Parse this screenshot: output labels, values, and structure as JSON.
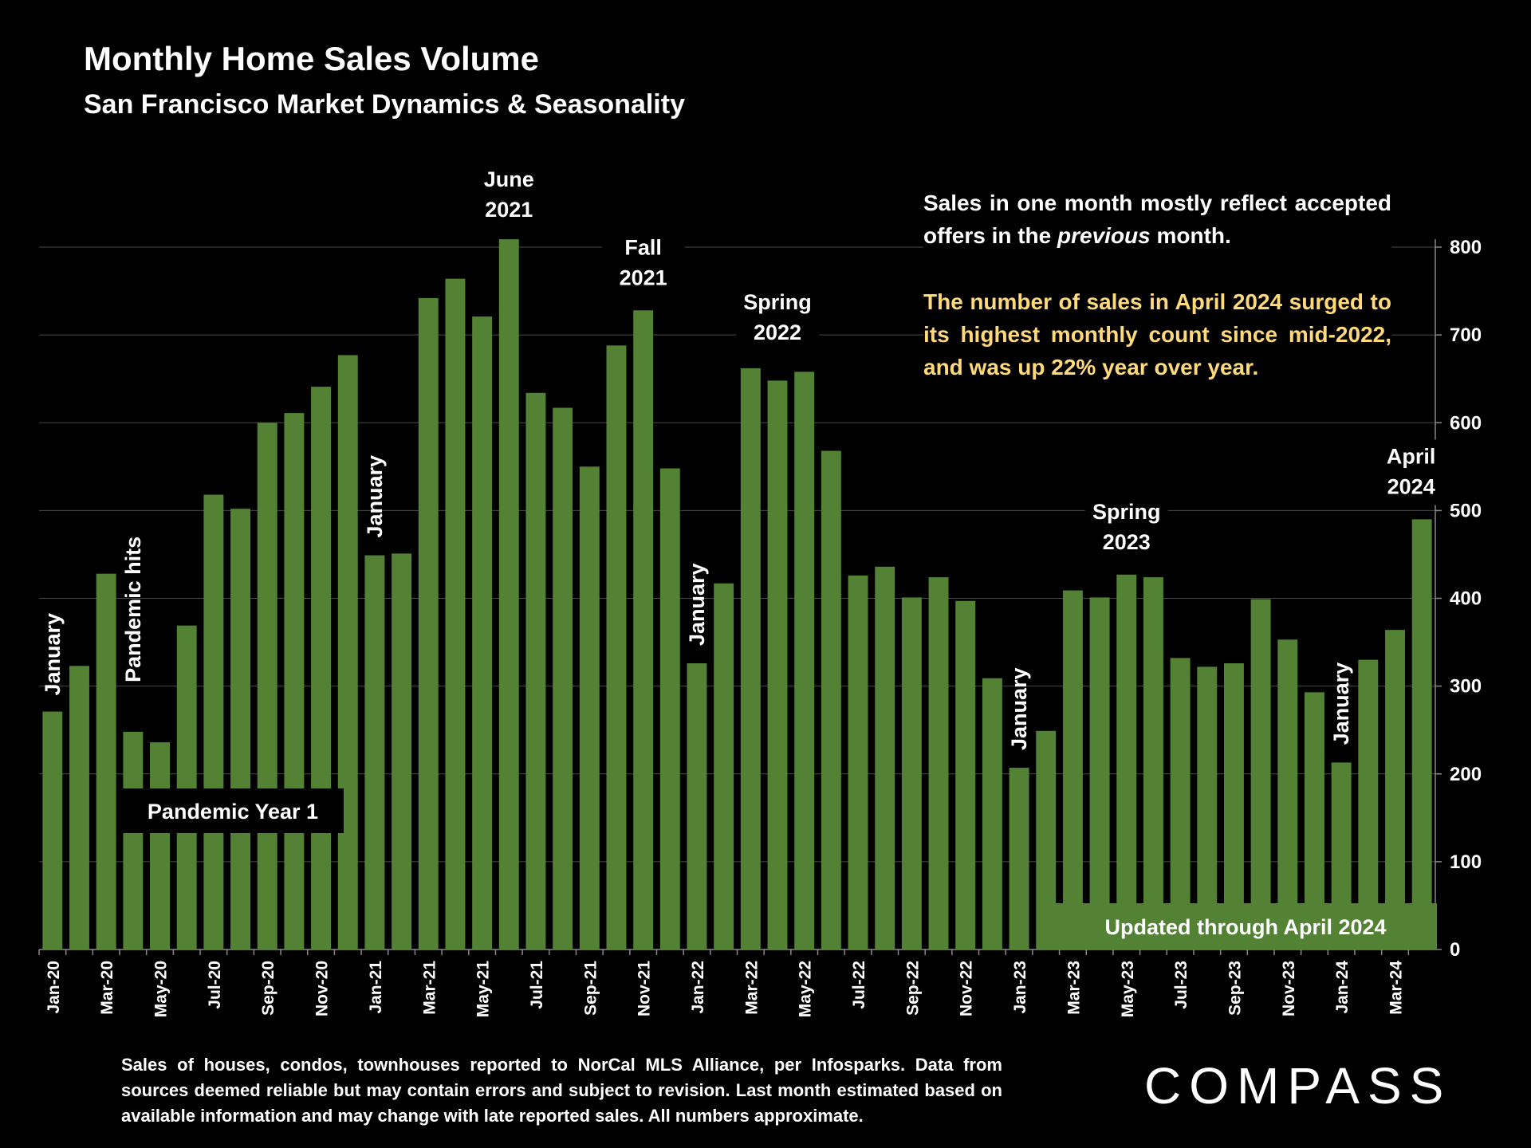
{
  "chart_data": {
    "type": "bar",
    "title": "Monthly Home Sales Volume",
    "subtitle": "San Francisco Market Dynamics & Seasonality",
    "categories": [
      "Jan-20",
      null,
      "Mar-20",
      null,
      "May-20",
      null,
      "Jul-20",
      null,
      "Sep-20",
      null,
      "Nov-20",
      null,
      "Jan-21",
      null,
      "Mar-21",
      null,
      "May-21",
      null,
      "Jul-21",
      null,
      "Sep-21",
      null,
      "Nov-21",
      null,
      "Jan-22",
      null,
      "Mar-22",
      null,
      "May-22",
      null,
      "Jul-22",
      null,
      "Sep-22",
      null,
      "Nov-22",
      null,
      "Jan-23",
      null,
      "Mar-23",
      null,
      "May-23",
      null,
      "Jul-23",
      null,
      "Sep-23",
      null,
      "Nov-23",
      null,
      "Jan-24",
      null,
      "Mar-24",
      null
    ],
    "values": [
      271,
      323,
      428,
      248,
      236,
      369,
      518,
      502,
      600,
      611,
      641,
      677,
      449,
      451,
      742,
      764,
      721,
      809,
      634,
      617,
      550,
      688,
      728,
      548,
      326,
      417,
      662,
      648,
      658,
      568,
      426,
      436,
      401,
      424,
      397,
      309,
      207,
      249,
      409,
      401,
      427,
      424,
      332,
      322,
      326,
      399,
      353,
      293,
      213,
      330,
      364,
      490
    ],
    "color": "#548235",
    "ylim": [
      0,
      800
    ],
    "yticks": [
      0,
      100,
      200,
      300,
      400,
      500,
      600,
      700,
      800
    ],
    "grid": true,
    "vertical_annotations": [
      "January",
      "Pandemic hits",
      "January",
      "January",
      "January",
      "January"
    ],
    "annotations": [
      {
        "lines": [
          "June",
          "2021"
        ]
      },
      {
        "lines": [
          "Fall",
          "2021"
        ]
      },
      {
        "lines": [
          "Spring",
          "2022"
        ]
      },
      {
        "lines": [
          "Spring",
          "2023"
        ]
      },
      {
        "lines": [
          "April",
          "2024"
        ]
      }
    ],
    "period_label": "Pandemic Year 1",
    "update_label": "Updated through April 2024",
    "commentary": [
      "Sales in one month mostly reflect accepted offers in the ",
      "previous",
      " month."
    ],
    "highlight": "The number of sales in April 2024 surged to its highest monthly count since mid-2022, and was up 22% year over year.",
    "footnote": "Sales of houses, condos, townhouses reported to NorCal MLS Alliance, per Infosparks. Data from sources deemed reliable but may contain errors and subject to revision. Last month estimated based on available information and may change with late reported sales. All numbers approximate.",
    "logo": "COMPASS"
  }
}
